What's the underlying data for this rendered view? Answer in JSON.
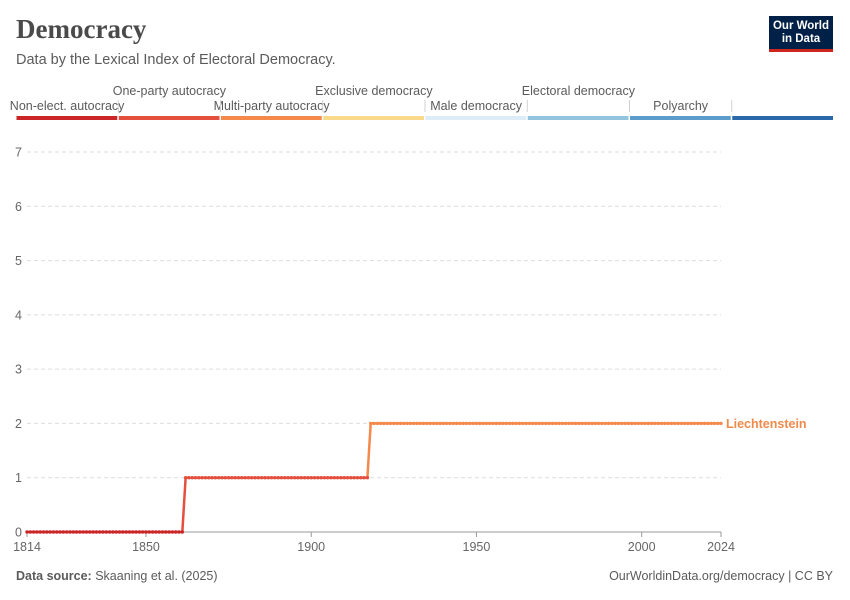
{
  "header": {
    "title": "Democracy",
    "subtitle": "Data by the Lexical Index of Electoral Democracy."
  },
  "logo": {
    "line1": "Our World",
    "line2": "in Data",
    "bg": "#002147",
    "accent": "#ce261e"
  },
  "footer": {
    "source_label": "Data source:",
    "source_value": "Skaaning et al. (2025)",
    "right": "OurWorldinData.org/democracy | CC BY"
  },
  "legend": {
    "categories": [
      {
        "label": "Non-elect. autocracy",
        "color": "#ca2628",
        "row": "lower"
      },
      {
        "label": "One-party autocracy",
        "color": "#e44f3e",
        "row": "upper"
      },
      {
        "label": "Multi-party autocracy",
        "color": "#f4894b",
        "row": "lower"
      },
      {
        "label": "Exclusive democracy",
        "color": "#fbd98b",
        "row": "upper"
      },
      {
        "label": "Male democracy",
        "color": "#dcedf7",
        "row": "lower"
      },
      {
        "label": "Electoral democracy",
        "color": "#93c4de",
        "row": "upper"
      },
      {
        "label": "Polyarchy",
        "color": "#5b9ccb",
        "row": "lower"
      },
      {
        "label": "",
        "color": "#2b6aaa",
        "row": "none"
      }
    ]
  },
  "chart_data": {
    "type": "line",
    "title": "Democracy",
    "subtitle": "Data by the Lexical Index of Electoral Democracy.",
    "xlim": [
      1814,
      2024
    ],
    "ylim": [
      0,
      7
    ],
    "x_ticks": [
      "1814",
      "1850",
      "1900",
      "1950",
      "2000",
      "2024"
    ],
    "y_ticks": [
      "0",
      "1",
      "2",
      "3",
      "4",
      "5",
      "6",
      "7"
    ],
    "grid": true,
    "series": [
      {
        "name": "Liechtenstein",
        "color": "#f08a4b",
        "steps": [
          {
            "x": 1814,
            "y": 0
          },
          {
            "x": 1861,
            "y": 0
          },
          {
            "x": 1862,
            "y": 1
          },
          {
            "x": 1917,
            "y": 1
          },
          {
            "x": 1918,
            "y": 2
          },
          {
            "x": 2024,
            "y": 2
          }
        ]
      }
    ]
  }
}
